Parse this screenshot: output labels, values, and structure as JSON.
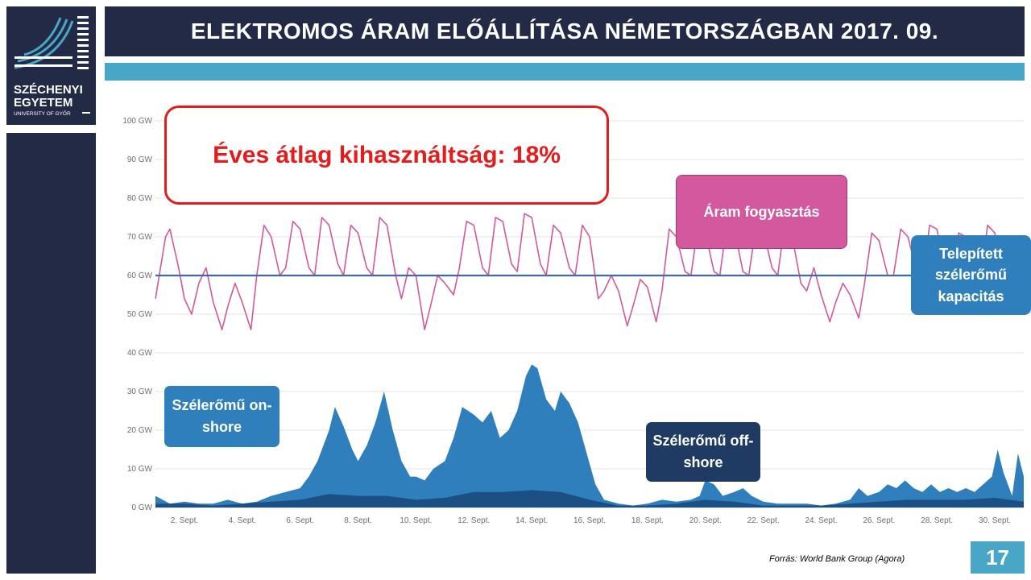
{
  "title": "ELEKTROMOS ÁRAM ELŐÁLLÍTÁSA NÉMETORSZÁGBAN 2017. 09.",
  "logo": {
    "name_line1": "SZÉCHENYI",
    "name_line2": "EGYETEM",
    "subtitle": "UNIVERSITY OF GYŐR",
    "icon": "szechenyi-logo-icon"
  },
  "callouts": {
    "utilization": "Éves átlag kihasználtság: 18%",
    "consumption": "Áram fogyasztás",
    "capacity": "Telepített szélerőmű kapacitás",
    "onshore": "Szélerőmű on-shore",
    "offshore": "Szélerőmű off-shore"
  },
  "source": "Forrás:  World Bank Group  (Agora)",
  "page_number": "17",
  "colors": {
    "dark_navy": "#232a46",
    "accent_blue": "#4aa6c6",
    "consumption_line": "#d4589e",
    "capacity_line": "#3f68b0",
    "onshore_area": "#2f7fbd",
    "offshore_area": "#1c4f82",
    "highlight_red": "#e41c1c"
  },
  "chart_data": {
    "type": "area",
    "x_unit": "day of September 2017",
    "xlim": [
      1,
      31
    ],
    "ylim": [
      0,
      100
    ],
    "y_ticks": [
      "0 GW",
      "10 GW",
      "20 GW",
      "30 GW",
      "40 GW",
      "50 GW",
      "60 GW",
      "70 GW",
      "80 GW",
      "90 GW",
      "100 GW"
    ],
    "x_ticks": [
      {
        "x": 2,
        "label": "2. Sept."
      },
      {
        "x": 4,
        "label": "4. Sept."
      },
      {
        "x": 6,
        "label": "6. Sept."
      },
      {
        "x": 8,
        "label": "8. Sept."
      },
      {
        "x": 10,
        "label": "10. Sept."
      },
      {
        "x": 12,
        "label": "12. Sept."
      },
      {
        "x": 14,
        "label": "14. Sept."
      },
      {
        "x": 16,
        "label": "16. Sept."
      },
      {
        "x": 18,
        "label": "18. Sept."
      },
      {
        "x": 20,
        "label": "20. Sept."
      },
      {
        "x": 22,
        "label": "22. Sept."
      },
      {
        "x": 24,
        "label": "24. Sept."
      },
      {
        "x": 26,
        "label": "26. Sept."
      },
      {
        "x": 28,
        "label": "28. Sept."
      },
      {
        "x": 30,
        "label": "30. Sept."
      }
    ],
    "grid": true,
    "series": [
      {
        "name": "Áram fogyasztás",
        "style": "line",
        "color": "#d4589e",
        "points": [
          [
            1,
            54
          ],
          [
            1.35,
            70
          ],
          [
            1.5,
            72
          ],
          [
            1.8,
            62
          ],
          [
            2,
            54
          ],
          [
            2.25,
            50
          ],
          [
            2.5,
            58
          ],
          [
            2.75,
            62
          ],
          [
            3,
            53
          ],
          [
            3.3,
            46
          ],
          [
            3.5,
            52
          ],
          [
            3.75,
            58
          ],
          [
            4,
            53
          ],
          [
            4.3,
            46
          ],
          [
            4.5,
            60
          ],
          [
            4.75,
            73
          ],
          [
            5,
            70
          ],
          [
            5.3,
            60
          ],
          [
            5.5,
            62
          ],
          [
            5.75,
            74
          ],
          [
            6,
            72
          ],
          [
            6.3,
            62
          ],
          [
            6.5,
            60
          ],
          [
            6.75,
            75
          ],
          [
            7,
            73
          ],
          [
            7.3,
            63
          ],
          [
            7.5,
            60
          ],
          [
            7.75,
            73
          ],
          [
            8,
            71
          ],
          [
            8.3,
            62
          ],
          [
            8.5,
            60
          ],
          [
            8.75,
            75
          ],
          [
            9,
            73
          ],
          [
            9.3,
            60
          ],
          [
            9.5,
            54
          ],
          [
            9.75,
            62
          ],
          [
            10,
            60
          ],
          [
            10.3,
            46
          ],
          [
            10.5,
            52
          ],
          [
            10.75,
            60
          ],
          [
            11,
            58
          ],
          [
            11.3,
            55
          ],
          [
            11.5,
            62
          ],
          [
            11.75,
            74
          ],
          [
            12,
            73
          ],
          [
            12.3,
            62
          ],
          [
            12.5,
            60
          ],
          [
            12.75,
            75
          ],
          [
            13,
            74
          ],
          [
            13.3,
            63
          ],
          [
            13.5,
            61
          ],
          [
            13.75,
            76
          ],
          [
            14,
            75
          ],
          [
            14.3,
            63
          ],
          [
            14.5,
            60
          ],
          [
            14.75,
            73
          ],
          [
            15,
            71
          ],
          [
            15.3,
            62
          ],
          [
            15.5,
            60
          ],
          [
            15.75,
            73
          ],
          [
            16,
            70
          ],
          [
            16.3,
            54
          ],
          [
            16.5,
            56
          ],
          [
            16.75,
            60
          ],
          [
            17,
            56
          ],
          [
            17.3,
            47
          ],
          [
            17.5,
            52
          ],
          [
            17.75,
            59
          ],
          [
            18,
            57
          ],
          [
            18.3,
            48
          ],
          [
            18.5,
            56
          ],
          [
            18.75,
            72
          ],
          [
            19,
            70
          ],
          [
            19.3,
            61
          ],
          [
            19.5,
            60
          ],
          [
            19.75,
            73
          ],
          [
            20,
            71
          ],
          [
            20.3,
            61
          ],
          [
            20.5,
            60
          ],
          [
            20.75,
            74
          ],
          [
            21,
            72
          ],
          [
            21.3,
            61
          ],
          [
            21.5,
            60
          ],
          [
            21.75,
            73
          ],
          [
            22,
            72
          ],
          [
            22.3,
            62
          ],
          [
            22.5,
            60
          ],
          [
            22.75,
            74
          ],
          [
            23,
            70
          ],
          [
            23.3,
            58
          ],
          [
            23.5,
            56
          ],
          [
            23.75,
            62
          ],
          [
            24,
            55
          ],
          [
            24.3,
            48
          ],
          [
            24.5,
            53
          ],
          [
            24.75,
            58
          ],
          [
            25,
            55
          ],
          [
            25.3,
            49
          ],
          [
            25.5,
            58
          ],
          [
            25.75,
            71
          ],
          [
            26,
            69
          ],
          [
            26.3,
            60
          ],
          [
            26.5,
            60
          ],
          [
            26.75,
            72
          ],
          [
            27,
            70
          ],
          [
            27.3,
            61
          ],
          [
            27.5,
            60
          ],
          [
            27.75,
            73
          ],
          [
            28,
            72
          ],
          [
            28.3,
            60
          ],
          [
            28.5,
            58
          ],
          [
            28.75,
            71
          ],
          [
            29,
            70
          ],
          [
            29.3,
            60
          ],
          [
            29.5,
            58
          ],
          [
            29.75,
            73
          ],
          [
            30,
            71
          ],
          [
            30.3,
            57
          ],
          [
            30.5,
            54
          ],
          [
            30.75,
            58
          ],
          [
            31,
            55
          ]
        ]
      },
      {
        "name": "Telepített szélerőmű kapacitás",
        "style": "hline",
        "color": "#3f68b0",
        "value": 60
      },
      {
        "name": "Szélerőmű on-shore",
        "style": "area",
        "color": "#2f7fbd",
        "points": [
          [
            1,
            3
          ],
          [
            1.5,
            1
          ],
          [
            2,
            1.5
          ],
          [
            2.5,
            1
          ],
          [
            3,
            1
          ],
          [
            3.5,
            2
          ],
          [
            4,
            1
          ],
          [
            4.5,
            1.5
          ],
          [
            5,
            3
          ],
          [
            5.5,
            4
          ],
          [
            6,
            5
          ],
          [
            6.3,
            8
          ],
          [
            6.6,
            12
          ],
          [
            7,
            20
          ],
          [
            7.2,
            26
          ],
          [
            7.5,
            21
          ],
          [
            7.8,
            15
          ],
          [
            8,
            12
          ],
          [
            8.3,
            16
          ],
          [
            8.6,
            22
          ],
          [
            8.9,
            30
          ],
          [
            9.2,
            20
          ],
          [
            9.5,
            12
          ],
          [
            9.8,
            8
          ],
          [
            10,
            8
          ],
          [
            10.3,
            7
          ],
          [
            10.6,
            10
          ],
          [
            11,
            12
          ],
          [
            11.3,
            18
          ],
          [
            11.6,
            26
          ],
          [
            12,
            24
          ],
          [
            12.3,
            22
          ],
          [
            12.6,
            25
          ],
          [
            12.9,
            18
          ],
          [
            13.2,
            20
          ],
          [
            13.5,
            25
          ],
          [
            13.8,
            34
          ],
          [
            14,
            37
          ],
          [
            14.2,
            36
          ],
          [
            14.5,
            28
          ],
          [
            14.8,
            25
          ],
          [
            15,
            30
          ],
          [
            15.3,
            27
          ],
          [
            15.6,
            22
          ],
          [
            15.9,
            14
          ],
          [
            16.2,
            6
          ],
          [
            16.5,
            2
          ],
          [
            17,
            1
          ],
          [
            17.5,
            0.5
          ],
          [
            18,
            1
          ],
          [
            18.5,
            2
          ],
          [
            19,
            1.5
          ],
          [
            19.5,
            2
          ],
          [
            19.8,
            3
          ],
          [
            20,
            7
          ],
          [
            20.3,
            6
          ],
          [
            20.6,
            3
          ],
          [
            21,
            4
          ],
          [
            21.3,
            5
          ],
          [
            21.6,
            3
          ],
          [
            22,
            1.5
          ],
          [
            22.5,
            1
          ],
          [
            23,
            1
          ],
          [
            23.5,
            1
          ],
          [
            24,
            0.5
          ],
          [
            24.5,
            1
          ],
          [
            25,
            2
          ],
          [
            25.3,
            5
          ],
          [
            25.6,
            3
          ],
          [
            26,
            4
          ],
          [
            26.3,
            6
          ],
          [
            26.6,
            5
          ],
          [
            26.9,
            7
          ],
          [
            27.2,
            5
          ],
          [
            27.5,
            4
          ],
          [
            27.8,
            6
          ],
          [
            28.1,
            4
          ],
          [
            28.4,
            5
          ],
          [
            28.7,
            4
          ],
          [
            29,
            5
          ],
          [
            29.3,
            4
          ],
          [
            29.6,
            6
          ],
          [
            29.9,
            8
          ],
          [
            30.1,
            15
          ],
          [
            30.3,
            9
          ],
          [
            30.6,
            3
          ],
          [
            30.8,
            14
          ],
          [
            31,
            8
          ]
        ]
      },
      {
        "name": "Szélerőmű off-shore",
        "style": "area",
        "color": "#1c4f82",
        "points": [
          [
            1,
            1
          ],
          [
            2,
            1
          ],
          [
            3,
            0.5
          ],
          [
            4,
            1
          ],
          [
            5,
            1.5
          ],
          [
            6,
            2
          ],
          [
            7,
            3.5
          ],
          [
            8,
            3
          ],
          [
            9,
            3
          ],
          [
            10,
            2
          ],
          [
            11,
            2.5
          ],
          [
            12,
            4
          ],
          [
            13,
            4
          ],
          [
            14,
            4.5
          ],
          [
            15,
            4
          ],
          [
            16,
            2
          ],
          [
            17,
            0.5
          ],
          [
            18,
            0.5
          ],
          [
            19,
            1
          ],
          [
            20,
            2
          ],
          [
            21,
            1.5
          ],
          [
            22,
            0.5
          ],
          [
            23,
            0.5
          ],
          [
            24,
            0.5
          ],
          [
            25,
            1
          ],
          [
            26,
            1.5
          ],
          [
            27,
            2
          ],
          [
            28,
            2
          ],
          [
            29,
            2
          ],
          [
            30,
            2.5
          ],
          [
            31,
            1.5
          ]
        ]
      }
    ]
  }
}
